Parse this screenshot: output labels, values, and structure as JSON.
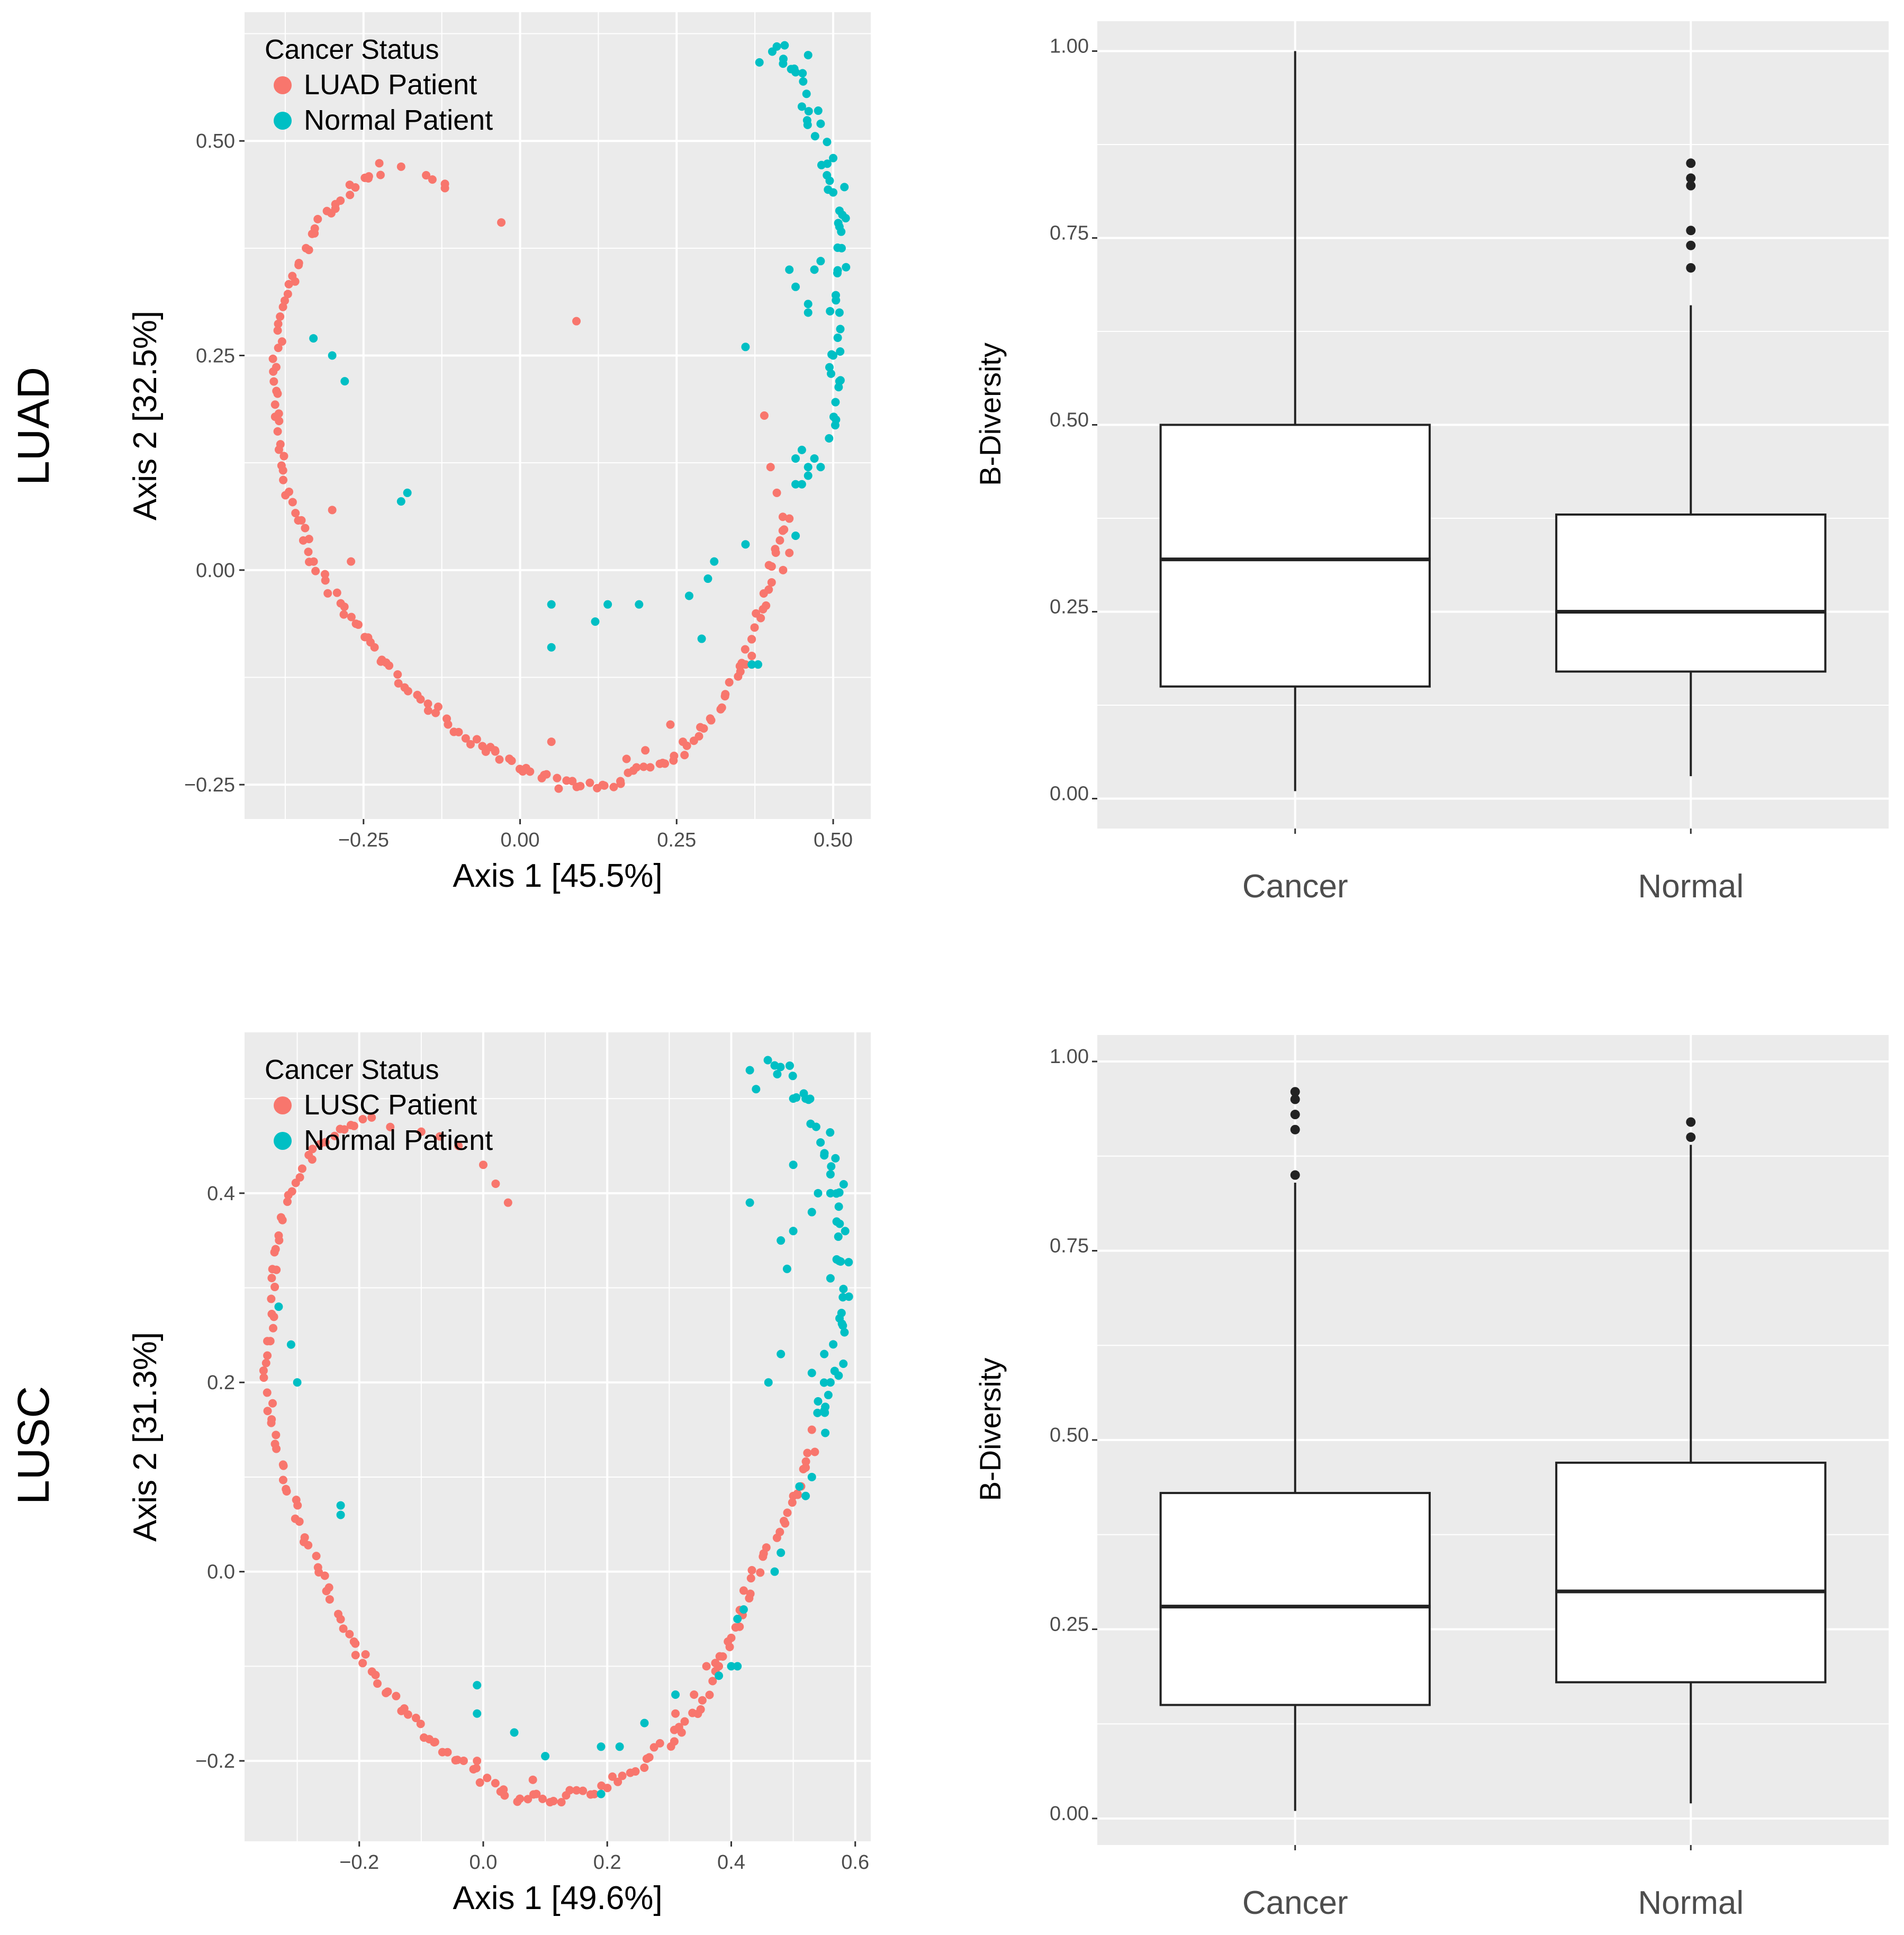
{
  "colors": {
    "cancer": "#F8766D",
    "normal": "#00BFC4",
    "panel_bg": "#EBEBEB",
    "grid": "#FFFFFF",
    "outlier": "#222222"
  },
  "row_labels": [
    "LUAD",
    "LUSC"
  ],
  "chart_data": [
    {
      "id": "luad-pcoa",
      "type": "scatter",
      "title": "",
      "xlabel": "Axis 1   [45.5%]",
      "ylabel": "Axis 2   [32.5%]",
      "xlim": [
        -0.44,
        0.56
      ],
      "ylim": [
        -0.29,
        0.65
      ],
      "xticks": [
        -0.25,
        0.0,
        0.25,
        0.5
      ],
      "xtick_labels": [
        "−0.25",
        "0.00",
        "0.25",
        "0.50"
      ],
      "yticks": [
        -0.25,
        0.0,
        0.25,
        0.5
      ],
      "ytick_labels": [
        "−0.25",
        "0.00",
        "0.25",
        "0.50"
      ],
      "legend": {
        "title": "Cancer Status",
        "position": "top-left",
        "entries": [
          "LUAD Patient",
          "Normal Patient"
        ]
      },
      "series": [
        {
          "name": "LUAD Patient",
          "curve": [
            [
              -0.22,
              0.47
            ],
            [
              -0.28,
              0.44
            ],
            [
              -0.33,
              0.4
            ],
            [
              -0.37,
              0.33
            ],
            [
              -0.39,
              0.25
            ],
            [
              -0.39,
              0.17
            ],
            [
              -0.37,
              0.09
            ],
            [
              -0.33,
              0.01
            ],
            [
              -0.27,
              -0.06
            ],
            [
              -0.2,
              -0.12
            ],
            [
              -0.1,
              -0.19
            ],
            [
              0.0,
              -0.23
            ],
            [
              0.07,
              -0.25
            ],
            [
              0.14,
              -0.25
            ],
            [
              0.21,
              -0.23
            ],
            [
              0.26,
              -0.21
            ],
            [
              0.31,
              -0.17
            ],
            [
              0.35,
              -0.12
            ],
            [
              0.38,
              -0.06
            ],
            [
              0.4,
              0.0
            ],
            [
              0.42,
              0.06
            ]
          ],
          "curve_points": 170,
          "curve_jitter": 0.006,
          "points": [
            [
              -0.19,
              0.47
            ],
            [
              -0.15,
              0.46
            ],
            [
              -0.14,
              0.455
            ],
            [
              -0.12,
              0.45
            ],
            [
              -0.12,
              0.445
            ],
            [
              -0.03,
              0.405
            ],
            [
              0.09,
              0.29
            ],
            [
              -0.3,
              0.07
            ],
            [
              -0.27,
              0.01
            ],
            [
              0.39,
              0.18
            ],
            [
              0.41,
              0.09
            ],
            [
              0.4,
              0.12
            ],
            [
              0.43,
              0.06
            ],
            [
              0.05,
              -0.2
            ],
            [
              0.24,
              -0.18
            ],
            [
              0.26,
              -0.2
            ],
            [
              0.2,
              -0.21
            ],
            [
              0.17,
              -0.22
            ],
            [
              -0.04,
              -0.21
            ],
            [
              0.36,
              -0.11
            ],
            [
              0.37,
              -0.1
            ],
            [
              0.42,
              0.0
            ],
            [
              0.43,
              0.02
            ]
          ]
        },
        {
          "name": "Normal Patient",
          "curve": [
            [
              0.39,
              0.6
            ],
            [
              0.43,
              0.6
            ],
            [
              0.46,
              0.56
            ],
            [
              0.47,
              0.51
            ],
            [
              0.49,
              0.47
            ],
            [
              0.51,
              0.43
            ],
            [
              0.52,
              0.38
            ],
            [
              0.51,
              0.32
            ],
            [
              0.5,
              0.26
            ],
            [
              0.5,
              0.2
            ],
            [
              0.49,
              0.15
            ]
          ],
          "curve_points": 45,
          "curve_jitter": 0.012,
          "points": [
            [
              0.41,
              0.61
            ],
            [
              0.44,
              0.58
            ],
            [
              0.45,
              0.54
            ],
            [
              0.42,
              0.59
            ],
            [
              0.46,
              0.6
            ],
            [
              0.48,
              0.52
            ],
            [
              0.5,
              0.48
            ],
            [
              0.49,
              0.46
            ],
            [
              0.5,
              0.44
            ],
            [
              0.52,
              0.41
            ],
            [
              0.51,
              0.4
            ],
            [
              0.43,
              0.35
            ],
            [
              0.44,
              0.33
            ],
            [
              0.46,
              0.31
            ],
            [
              0.46,
              0.3
            ],
            [
              0.47,
              0.35
            ],
            [
              0.48,
              0.36
            ],
            [
              0.51,
              0.3
            ],
            [
              0.5,
              0.25
            ],
            [
              0.51,
              0.22
            ],
            [
              0.45,
              0.14
            ],
            [
              0.44,
              0.13
            ],
            [
              0.46,
              0.12
            ],
            [
              0.47,
              0.13
            ],
            [
              0.48,
              0.12
            ],
            [
              0.44,
              0.1
            ],
            [
              0.45,
              0.1
            ],
            [
              0.46,
              0.11
            ],
            [
              0.36,
              0.26
            ],
            [
              0.36,
              0.03
            ],
            [
              0.44,
              0.04
            ],
            [
              0.31,
              0.01
            ],
            [
              0.3,
              -0.01
            ],
            [
              0.27,
              -0.03
            ],
            [
              0.29,
              -0.08
            ],
            [
              0.05,
              -0.04
            ],
            [
              0.14,
              -0.04
            ],
            [
              0.19,
              -0.04
            ],
            [
              0.12,
              -0.06
            ],
            [
              0.05,
              -0.09
            ],
            [
              -0.33,
              0.27
            ],
            [
              -0.3,
              0.25
            ],
            [
              -0.28,
              0.22
            ],
            [
              -0.19,
              0.08
            ],
            [
              -0.18,
              0.09
            ],
            [
              0.37,
              -0.11
            ],
            [
              0.38,
              -0.11
            ]
          ]
        }
      ]
    },
    {
      "id": "luad-box",
      "type": "box",
      "xlabel": "",
      "ylabel": "B-Diversity",
      "ylim": [
        -0.04,
        1.04
      ],
      "yticks": [
        0.0,
        0.25,
        0.5,
        0.75,
        1.0
      ],
      "ytick_labels": [
        "0.00",
        "0.25",
        "0.50",
        "0.75",
        "1.00"
      ],
      "categories": [
        "Cancer",
        "Normal"
      ],
      "boxes": [
        {
          "category": "Cancer",
          "min": 0.01,
          "q1": 0.15,
          "median": 0.32,
          "q3": 0.5,
          "max": 1.0,
          "outliers": []
        },
        {
          "category": "Normal",
          "min": 0.03,
          "q1": 0.17,
          "median": 0.25,
          "q3": 0.38,
          "max": 0.66,
          "outliers": [
            0.85,
            0.83,
            0.82,
            0.76,
            0.74,
            0.71
          ]
        }
      ]
    },
    {
      "id": "lusc-pcoa",
      "type": "scatter",
      "title": "",
      "xlabel": "Axis 1   [49.6%]",
      "ylabel": "Axis 2   [31.3%]",
      "xlim": [
        -0.385,
        0.625
      ],
      "ylim": [
        -0.285,
        0.57
      ],
      "xticks": [
        -0.2,
        0.0,
        0.2,
        0.4,
        0.6
      ],
      "xtick_labels": [
        "−0.2",
        "0.0",
        "0.2",
        "0.4",
        "0.6"
      ],
      "yticks": [
        -0.2,
        0.0,
        0.2,
        0.4
      ],
      "ytick_labels": [
        "−0.2",
        "0.0",
        "0.2",
        "0.4"
      ],
      "legend": {
        "title": "Cancer Status",
        "position": "top-left",
        "entries": [
          "LUSC Patient",
          "Normal Patient"
        ]
      },
      "series": [
        {
          "name": "LUSC Patient",
          "curve": [
            [
              -0.2,
              0.48
            ],
            [
              -0.27,
              0.45
            ],
            [
              -0.32,
              0.38
            ],
            [
              -0.34,
              0.3
            ],
            [
              -0.35,
              0.2
            ],
            [
              -0.33,
              0.12
            ],
            [
              -0.29,
              0.04
            ],
            [
              -0.24,
              -0.04
            ],
            [
              -0.18,
              -0.11
            ],
            [
              -0.1,
              -0.17
            ],
            [
              -0.02,
              -0.21
            ],
            [
              0.05,
              -0.24
            ],
            [
              0.12,
              -0.24
            ],
            [
              0.18,
              -0.23
            ],
            [
              0.24,
              -0.21
            ],
            [
              0.3,
              -0.18
            ],
            [
              0.35,
              -0.14
            ],
            [
              0.4,
              -0.07
            ],
            [
              0.44,
              0.0
            ],
            [
              0.5,
              0.07
            ],
            [
              0.53,
              0.13
            ]
          ],
          "curve_points": 170,
          "curve_jitter": 0.006,
          "points": [
            [
              -0.18,
              0.48
            ],
            [
              -0.15,
              0.47
            ],
            [
              -0.1,
              0.465
            ],
            [
              -0.07,
              0.46
            ],
            [
              -0.04,
              0.45
            ],
            [
              0.0,
              0.43
            ],
            [
              0.02,
              0.41
            ],
            [
              0.04,
              0.39
            ],
            [
              0.5,
              0.08
            ],
            [
              0.52,
              0.11
            ],
            [
              0.53,
              0.15
            ],
            [
              0.42,
              -0.02
            ],
            [
              0.4,
              -0.07
            ],
            [
              0.36,
              -0.1
            ],
            [
              0.38,
              -0.1
            ],
            [
              0.34,
              -0.13
            ],
            [
              0.31,
              -0.15
            ],
            [
              0.32,
              -0.17
            ],
            [
              0.08,
              -0.22
            ],
            [
              -0.01,
              -0.2
            ]
          ]
        },
        {
          "name": "Normal Patient",
          "curve": [
            [
              0.46,
              0.53
            ],
            [
              0.49,
              0.53
            ],
            [
              0.52,
              0.5
            ],
            [
              0.55,
              0.46
            ],
            [
              0.57,
              0.41
            ],
            [
              0.58,
              0.36
            ],
            [
              0.58,
              0.3
            ],
            [
              0.58,
              0.25
            ],
            [
              0.56,
              0.2
            ],
            [
              0.54,
              0.15
            ]
          ],
          "curve_points": 42,
          "curve_jitter": 0.012,
          "points": [
            [
              0.43,
              0.53
            ],
            [
              0.44,
              0.51
            ],
            [
              0.47,
              0.535
            ],
            [
              0.5,
              0.5
            ],
            [
              0.52,
              0.5
            ],
            [
              0.55,
              0.44
            ],
            [
              0.56,
              0.42
            ],
            [
              0.56,
              0.4
            ],
            [
              0.57,
              0.37
            ],
            [
              0.57,
              0.33
            ],
            [
              0.56,
              0.31
            ],
            [
              0.58,
              0.29
            ],
            [
              0.58,
              0.26
            ],
            [
              0.56,
              0.2
            ],
            [
              0.55,
              0.23
            ],
            [
              0.54,
              0.18
            ],
            [
              0.53,
              0.21
            ],
            [
              0.55,
              0.17
            ],
            [
              0.49,
              0.32
            ],
            [
              0.48,
              0.35
            ],
            [
              0.5,
              0.36
            ],
            [
              0.53,
              0.38
            ],
            [
              0.54,
              0.4
            ],
            [
              0.5,
              0.43
            ],
            [
              0.43,
              0.39
            ],
            [
              0.48,
              0.23
            ],
            [
              0.46,
              0.2
            ],
            [
              0.53,
              0.1
            ],
            [
              0.52,
              0.08
            ],
            [
              0.51,
              0.09
            ],
            [
              0.48,
              0.02
            ],
            [
              0.47,
              0.0
            ],
            [
              0.42,
              -0.04
            ],
            [
              0.41,
              -0.05
            ],
            [
              0.4,
              -0.1
            ],
            [
              0.41,
              -0.1
            ],
            [
              0.38,
              -0.11
            ],
            [
              0.31,
              -0.13
            ],
            [
              0.26,
              -0.16
            ],
            [
              0.22,
              -0.185
            ],
            [
              0.19,
              -0.185
            ],
            [
              0.1,
              -0.195
            ],
            [
              0.05,
              -0.17
            ],
            [
              -0.01,
              -0.12
            ],
            [
              -0.01,
              -0.15
            ],
            [
              -0.33,
              0.28
            ],
            [
              -0.31,
              0.24
            ],
            [
              -0.3,
              0.2
            ],
            [
              -0.23,
              0.07
            ],
            [
              -0.23,
              0.06
            ],
            [
              0.19,
              -0.235
            ]
          ]
        }
      ]
    },
    {
      "id": "lusc-box",
      "type": "box",
      "xlabel": "",
      "ylabel": "B-Diversity",
      "ylim": [
        -0.035,
        1.035
      ],
      "yticks": [
        0.0,
        0.25,
        0.5,
        0.75,
        1.0
      ],
      "ytick_labels": [
        "0.00",
        "0.25",
        "0.50",
        "0.75",
        "1.00"
      ],
      "categories": [
        "Cancer",
        "Normal"
      ],
      "boxes": [
        {
          "category": "Cancer",
          "min": 0.01,
          "q1": 0.15,
          "median": 0.28,
          "q3": 0.43,
          "max": 0.84,
          "outliers": [
            0.96,
            0.95,
            0.93,
            0.91,
            0.85
          ]
        },
        {
          "category": "Normal",
          "min": 0.02,
          "q1": 0.18,
          "median": 0.3,
          "q3": 0.47,
          "max": 0.89,
          "outliers": [
            0.92,
            0.9
          ]
        }
      ]
    }
  ]
}
